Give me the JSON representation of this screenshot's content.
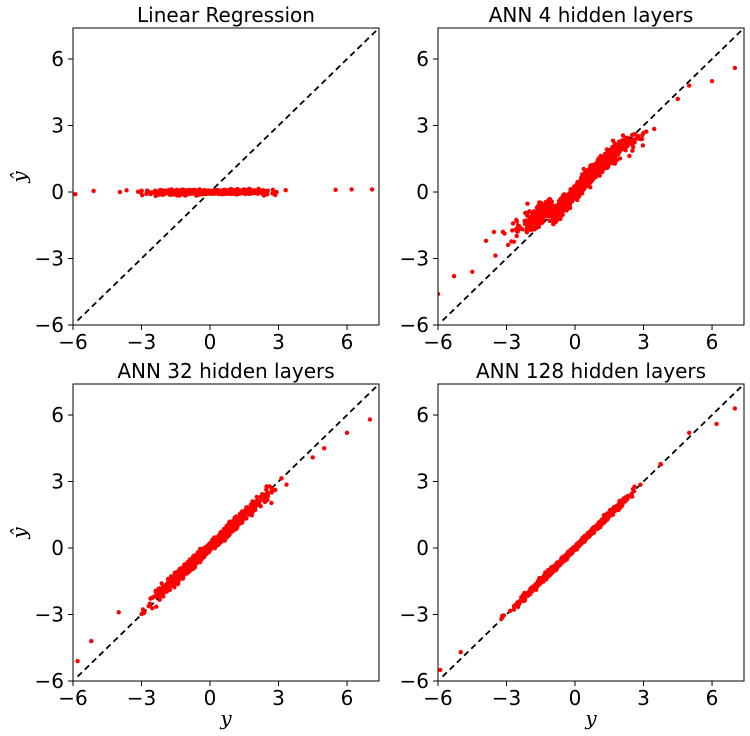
{
  "figure": {
    "identity_line_color": "#000000",
    "point_color": "#ff0000"
  },
  "chart_data": [
    {
      "type": "scatter",
      "title": "Linear Regression",
      "xlabel": "",
      "ylabel": "ŷ",
      "xlim": [
        -6,
        7.4
      ],
      "ylim": [
        -6,
        7.4
      ],
      "xticks": [
        "−6",
        "−3",
        "0",
        "3",
        "6"
      ],
      "yticks": [
        "−6",
        "−3",
        "0",
        "3",
        "6"
      ],
      "reference_line": "y = x (dashed)",
      "fit": {
        "slope": 0.005,
        "intercept": 0.0,
        "noise": 0.03
      },
      "notable_points": [
        [
          -5.9,
          -0.1
        ],
        [
          -5.1,
          0.05
        ],
        [
          5.5,
          0.1
        ],
        [
          6.2,
          0.12
        ],
        [
          7.1,
          0.12
        ]
      ]
    },
    {
      "type": "scatter",
      "title": "ANN 4 hidden layers",
      "xlabel": "",
      "ylabel": "",
      "xlim": [
        -6,
        7.4
      ],
      "ylim": [
        -6,
        7.4
      ],
      "xticks": [
        "−6",
        "−3",
        "0",
        "3",
        "6"
      ],
      "yticks": [
        "−6",
        "−3",
        "0",
        "3",
        "6"
      ],
      "reference_line": "y = x (dashed)",
      "fit": {
        "shape": "s-curve",
        "noise": 0.15
      },
      "notable_points": [
        [
          -6.0,
          -4.6
        ],
        [
          -5.3,
          -3.8
        ],
        [
          -4.5,
          -3.6
        ],
        [
          -3.9,
          -2.2
        ],
        [
          4.5,
          4.2
        ],
        [
          5.0,
          4.8
        ],
        [
          6.0,
          5.0
        ],
        [
          7.0,
          5.6
        ]
      ]
    },
    {
      "type": "scatter",
      "title": "ANN 32 hidden layers",
      "xlabel": "y",
      "ylabel": "ŷ",
      "xlim": [
        -6,
        7.4
      ],
      "ylim": [
        -6,
        7.4
      ],
      "xticks": [
        "−6",
        "−3",
        "0",
        "3",
        "6"
      ],
      "yticks": [
        "−6",
        "−3",
        "0",
        "3",
        "6"
      ],
      "reference_line": "y = x (dashed)",
      "fit": {
        "slope": 0.95,
        "intercept": 0.05,
        "noise": 0.08
      },
      "notable_points": [
        [
          -5.8,
          -5.1
        ],
        [
          -5.2,
          -4.2
        ],
        [
          -4.0,
          -2.9
        ],
        [
          5.0,
          4.5
        ],
        [
          6.0,
          5.2
        ],
        [
          7.0,
          5.8
        ]
      ]
    },
    {
      "type": "scatter",
      "title": "ANN 128 hidden layers",
      "xlabel": "y",
      "ylabel": "",
      "xlim": [
        -6,
        7.4
      ],
      "ylim": [
        -6,
        7.4
      ],
      "xticks": [
        "−6",
        "−3",
        "0",
        "3",
        "6"
      ],
      "yticks": [
        "−6",
        "−3",
        "0",
        "3",
        "6"
      ],
      "reference_line": "y = x (dashed)",
      "fit": {
        "slope": 1.0,
        "intercept": 0.0,
        "noise": 0.04
      },
      "notable_points": [
        [
          -5.9,
          -5.5
        ],
        [
          -5.0,
          -4.7
        ],
        [
          5.0,
          5.2
        ],
        [
          6.2,
          5.6
        ],
        [
          7.0,
          6.3
        ]
      ]
    }
  ]
}
